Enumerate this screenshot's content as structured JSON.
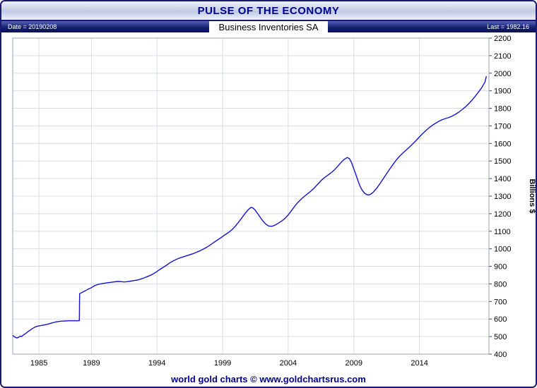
{
  "header": {
    "title": "PULSE OF THE ECONOMY"
  },
  "infobar": {
    "date_label": "Date = 20190208",
    "chart_title": "Business Inventories SA",
    "last_label": "Last = 1982.16"
  },
  "footer": {
    "text": "world gold charts © www.goldchartsrus.com"
  },
  "colors": {
    "line": "#1414cc",
    "grid": "#d8dce8",
    "plot_border": "#9aa0b8",
    "frame": "#1a1a6e",
    "accent_text": "#00008B"
  },
  "chart_data": {
    "type": "line",
    "title": "Business Inventories SA",
    "ylabel": "Billions $",
    "xlabel": "",
    "date": "20190208",
    "last_value": 1982.16,
    "xlim": [
      1983.0,
      2019.3
    ],
    "ylim": [
      400,
      2200
    ],
    "x_ticks": [
      1985,
      1989,
      1994,
      1999,
      2004,
      2009,
      2014
    ],
    "y_ticks": [
      2200,
      2100,
      2000,
      1900,
      1800,
      1700,
      1600,
      1500,
      1400,
      1300,
      1200,
      1100,
      1000,
      900,
      800,
      700,
      600,
      500,
      400
    ],
    "grid": true,
    "legend": "none",
    "series": [
      {
        "name": "Business Inventories SA",
        "points": [
          [
            1983.0,
            507
          ],
          [
            1983.08,
            502
          ],
          [
            1983.17,
            497
          ],
          [
            1983.25,
            494
          ],
          [
            1983.33,
            492
          ],
          [
            1983.42,
            495
          ],
          [
            1983.5,
            499
          ],
          [
            1983.58,
            503
          ],
          [
            1983.67,
            500
          ],
          [
            1983.75,
            505
          ],
          [
            1983.83,
            510
          ],
          [
            1983.92,
            514
          ],
          [
            1984.0,
            518
          ],
          [
            1984.17,
            528
          ],
          [
            1984.33,
            537
          ],
          [
            1984.5,
            546
          ],
          [
            1984.67,
            553
          ],
          [
            1984.83,
            558
          ],
          [
            1985.0,
            561
          ],
          [
            1985.25,
            564
          ],
          [
            1985.5,
            568
          ],
          [
            1985.75,
            572
          ],
          [
            1986.0,
            578
          ],
          [
            1986.25,
            583
          ],
          [
            1986.5,
            586
          ],
          [
            1986.75,
            588
          ],
          [
            1987.0,
            589
          ],
          [
            1987.25,
            590
          ],
          [
            1987.5,
            590
          ],
          [
            1987.75,
            590
          ],
          [
            1988.0,
            590
          ],
          [
            1988.08,
            591
          ],
          [
            1988.1,
            745
          ],
          [
            1988.25,
            750
          ],
          [
            1988.42,
            757
          ],
          [
            1988.58,
            763
          ],
          [
            1988.75,
            770
          ],
          [
            1989.0,
            779
          ],
          [
            1989.25,
            790
          ],
          [
            1989.5,
            797
          ],
          [
            1989.75,
            801
          ],
          [
            1990.0,
            804
          ],
          [
            1990.25,
            807
          ],
          [
            1990.5,
            809
          ],
          [
            1990.75,
            812
          ],
          [
            1991.0,
            814
          ],
          [
            1991.25,
            813
          ],
          [
            1991.5,
            811
          ],
          [
            1991.75,
            813
          ],
          [
            1992.0,
            816
          ],
          [
            1992.25,
            819
          ],
          [
            1992.5,
            822
          ],
          [
            1992.75,
            827
          ],
          [
            1993.0,
            834
          ],
          [
            1993.25,
            841
          ],
          [
            1993.5,
            849
          ],
          [
            1993.75,
            859
          ],
          [
            1994.0,
            871
          ],
          [
            1994.25,
            884
          ],
          [
            1994.5,
            896
          ],
          [
            1994.75,
            908
          ],
          [
            1995.0,
            921
          ],
          [
            1995.25,
            932
          ],
          [
            1995.5,
            941
          ],
          [
            1995.75,
            948
          ],
          [
            1996.0,
            954
          ],
          [
            1996.25,
            960
          ],
          [
            1996.5,
            966
          ],
          [
            1996.75,
            972
          ],
          [
            1997.0,
            980
          ],
          [
            1997.25,
            988
          ],
          [
            1997.5,
            997
          ],
          [
            1997.75,
            1007
          ],
          [
            1998.0,
            1019
          ],
          [
            1998.25,
            1032
          ],
          [
            1998.5,
            1045
          ],
          [
            1998.75,
            1057
          ],
          [
            1999.0,
            1070
          ],
          [
            1999.25,
            1083
          ],
          [
            1999.5,
            1096
          ],
          [
            1999.75,
            1111
          ],
          [
            2000.0,
            1131
          ],
          [
            2000.25,
            1155
          ],
          [
            2000.5,
            1180
          ],
          [
            2000.75,
            1205
          ],
          [
            2001.0,
            1226
          ],
          [
            2001.17,
            1236
          ],
          [
            2001.33,
            1232
          ],
          [
            2001.5,
            1218
          ],
          [
            2001.75,
            1192
          ],
          [
            2002.0,
            1165
          ],
          [
            2002.25,
            1143
          ],
          [
            2002.5,
            1130
          ],
          [
            2002.75,
            1128
          ],
          [
            2003.0,
            1135
          ],
          [
            2003.25,
            1146
          ],
          [
            2003.5,
            1158
          ],
          [
            2003.75,
            1173
          ],
          [
            2004.0,
            1193
          ],
          [
            2004.25,
            1218
          ],
          [
            2004.5,
            1243
          ],
          [
            2004.75,
            1265
          ],
          [
            2005.0,
            1284
          ],
          [
            2005.25,
            1300
          ],
          [
            2005.5,
            1315
          ],
          [
            2005.75,
            1330
          ],
          [
            2006.0,
            1348
          ],
          [
            2006.25,
            1368
          ],
          [
            2006.5,
            1388
          ],
          [
            2006.75,
            1405
          ],
          [
            2007.0,
            1418
          ],
          [
            2007.25,
            1432
          ],
          [
            2007.5,
            1448
          ],
          [
            2007.75,
            1468
          ],
          [
            2008.0,
            1490
          ],
          [
            2008.25,
            1508
          ],
          [
            2008.5,
            1520
          ],
          [
            2008.67,
            1513
          ],
          [
            2008.83,
            1490
          ],
          [
            2009.0,
            1455
          ],
          [
            2009.17,
            1420
          ],
          [
            2009.33,
            1385
          ],
          [
            2009.5,
            1352
          ],
          [
            2009.67,
            1330
          ],
          [
            2009.83,
            1316
          ],
          [
            2010.0,
            1308
          ],
          [
            2010.17,
            1307
          ],
          [
            2010.33,
            1313
          ],
          [
            2010.5,
            1324
          ],
          [
            2010.75,
            1345
          ],
          [
            2011.0,
            1372
          ],
          [
            2011.25,
            1400
          ],
          [
            2011.5,
            1428
          ],
          [
            2011.75,
            1455
          ],
          [
            2012.0,
            1482
          ],
          [
            2012.25,
            1507
          ],
          [
            2012.5,
            1528
          ],
          [
            2012.75,
            1546
          ],
          [
            2013.0,
            1563
          ],
          [
            2013.25,
            1580
          ],
          [
            2013.5,
            1598
          ],
          [
            2013.75,
            1617
          ],
          [
            2014.0,
            1637
          ],
          [
            2014.25,
            1656
          ],
          [
            2014.5,
            1674
          ],
          [
            2014.75,
            1690
          ],
          [
            2015.0,
            1704
          ],
          [
            2015.25,
            1716
          ],
          [
            2015.5,
            1727
          ],
          [
            2015.75,
            1736
          ],
          [
            2016.0,
            1742
          ],
          [
            2016.25,
            1748
          ],
          [
            2016.5,
            1756
          ],
          [
            2016.75,
            1766
          ],
          [
            2017.0,
            1778
          ],
          [
            2017.25,
            1792
          ],
          [
            2017.5,
            1808
          ],
          [
            2017.75,
            1826
          ],
          [
            2018.0,
            1846
          ],
          [
            2018.25,
            1868
          ],
          [
            2018.5,
            1892
          ],
          [
            2018.75,
            1918
          ],
          [
            2019.0,
            1950
          ],
          [
            2019.1,
            1982.16
          ]
        ]
      }
    ]
  }
}
